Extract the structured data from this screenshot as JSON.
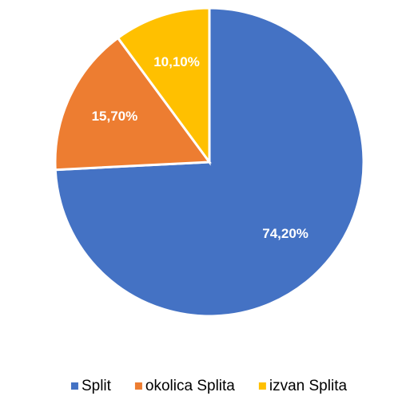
{
  "chart_data": {
    "type": "pie",
    "categories": [
      "Split",
      "okolica Splita",
      "izvan Splita"
    ],
    "values": [
      74.2,
      15.7,
      10.1
    ],
    "value_labels": [
      "74,20%",
      "15,70%",
      "10,10%"
    ],
    "colors": [
      "#4472c4",
      "#ed7d31",
      "#ffc000"
    ],
    "legend": "bottom"
  }
}
